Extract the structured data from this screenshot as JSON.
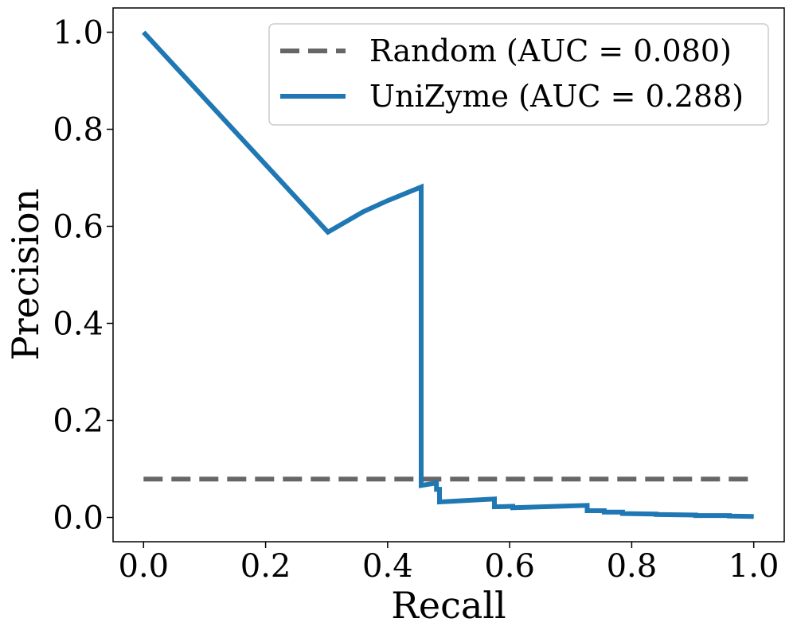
{
  "chart_data": {
    "type": "line",
    "xlabel": "Recall",
    "ylabel": "Precision",
    "xlim": [
      -0.05,
      1.05
    ],
    "ylim": [
      -0.05,
      1.05
    ],
    "xticks": [
      "0.0",
      "0.2",
      "0.4",
      "0.6",
      "0.8",
      "1.0"
    ],
    "yticks": [
      "0.0",
      "0.2",
      "0.4",
      "0.6",
      "0.8",
      "1.0"
    ],
    "xtick_values": [
      0.0,
      0.2,
      0.4,
      0.6,
      0.8,
      1.0
    ],
    "ytick_values": [
      0.0,
      0.2,
      0.4,
      0.6,
      0.8,
      1.0
    ],
    "grid": false,
    "legend_position": "top-right",
    "series": [
      {
        "name": "Random (AUC = 0.080)",
        "style": "dashed",
        "color": "#666666",
        "x": [
          0.0,
          1.0
        ],
        "y": [
          0.079,
          0.079
        ]
      },
      {
        "name": "UniZyme (AUC = 0.288)",
        "style": "solid",
        "color": "#1f77b4",
        "x": [
          0.0,
          0.302,
          0.36,
          0.4,
          0.455,
          0.455,
          0.48,
          0.48,
          0.485,
          0.485,
          0.575,
          0.575,
          0.605,
          0.605,
          0.727,
          0.727,
          0.755,
          0.755,
          0.785,
          0.785,
          0.84,
          0.84,
          0.905,
          0.905,
          0.96,
          0.96,
          1.0
        ],
        "y": [
          1.0,
          0.588,
          0.63,
          0.653,
          0.681,
          0.066,
          0.071,
          0.058,
          0.058,
          0.032,
          0.038,
          0.022,
          0.023,
          0.02,
          0.025,
          0.014,
          0.014,
          0.011,
          0.011,
          0.008,
          0.007,
          0.006,
          0.005,
          0.004,
          0.004,
          0.003,
          0.002
        ]
      }
    ]
  }
}
